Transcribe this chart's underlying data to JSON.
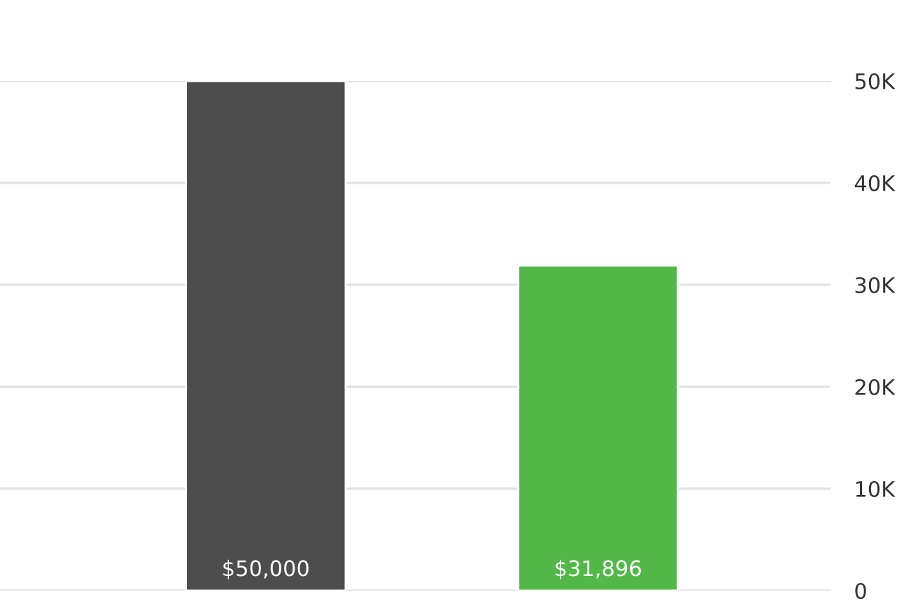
{
  "chart_data": {
    "type": "bar",
    "categories": [
      null,
      null
    ],
    "values": [
      50000,
      31896
    ],
    "colors": [
      "#4d4d4d",
      "#52b848"
    ],
    "value_labels": [
      "$50,000",
      "$31,896"
    ],
    "ylim": [
      0,
      50000
    ],
    "yticks": [
      0,
      {
        "value": 10000,
        "label": "10K"
      },
      {
        "value": 20000,
        "label": "20K"
      },
      {
        "value": 30000,
        "label": "30K"
      },
      {
        "value": 40000,
        "label": "40K"
      },
      {
        "value": 50000,
        "label": "50K"
      }
    ],
    "grid": "y",
    "legend": false
  }
}
